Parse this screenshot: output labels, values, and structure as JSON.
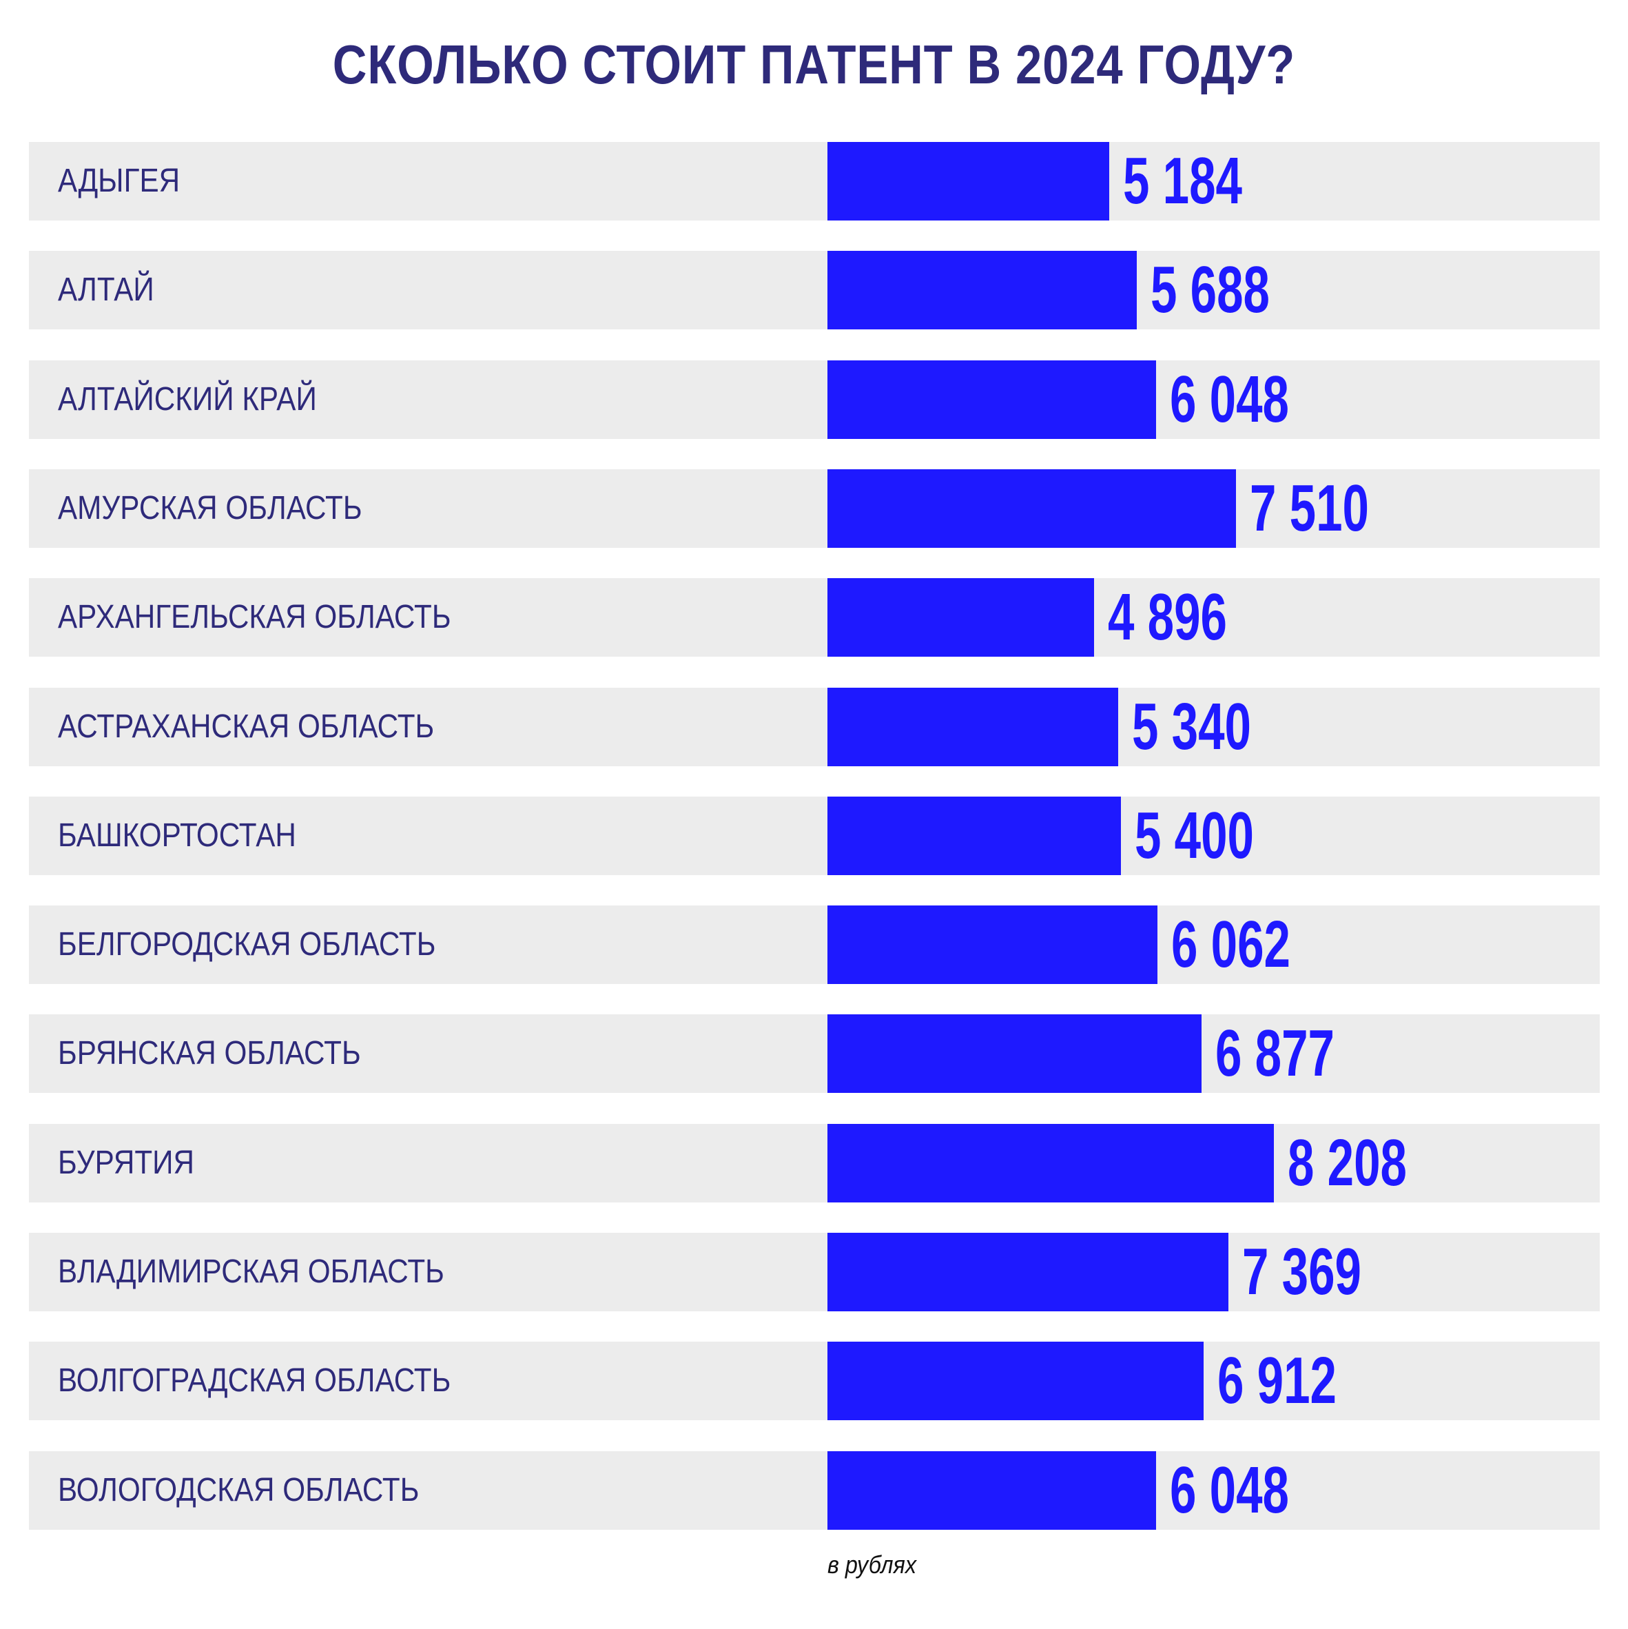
{
  "chart_data": {
    "type": "bar",
    "orientation": "horizontal",
    "title": "СКОЛЬКО СТОИТ ПАТЕНТ В 2024 ГОДУ?",
    "unit_note": "в рублях",
    "categories": [
      "АДЫГЕЯ",
      "АЛТАЙ",
      "АЛТАЙСКИЙ КРАЙ",
      "АМУРСКАЯ ОБЛАСТЬ",
      "АРХАНГЕЛЬСКАЯ ОБЛАСТЬ",
      "АСТРАХАНСКАЯ ОБЛАСТЬ",
      "БАШКОРТОСТАН",
      "БЕЛГОРОДСКАЯ ОБЛАСТЬ",
      "БРЯНСКАЯ ОБЛАСТЬ",
      "БУРЯТИЯ",
      "ВЛАДИМИРСКАЯ ОБЛАСТЬ",
      "ВОЛГОГРАДСКАЯ ОБЛАСТЬ",
      "ВОЛОГОДСКАЯ ОБЛАСТЬ"
    ],
    "values": [
      5184,
      5688,
      6048,
      7510,
      4896,
      5340,
      5400,
      6062,
      6877,
      8208,
      7369,
      6912,
      6048
    ],
    "value_labels": [
      "5 184",
      "5 688",
      "6 048",
      "7 510",
      "4 896",
      "5 340",
      "5 400",
      "6 062",
      "6 877",
      "8 208",
      "7 369",
      "6 912",
      "6 048"
    ],
    "xlim": [
      0,
      8208
    ],
    "grid": false,
    "legend": "none"
  },
  "colors": {
    "title": "#2e2a7a",
    "label": "#2e2a7a",
    "bar": "#1e19ff",
    "value": "#1e19ff",
    "row_background": "#ececec"
  }
}
